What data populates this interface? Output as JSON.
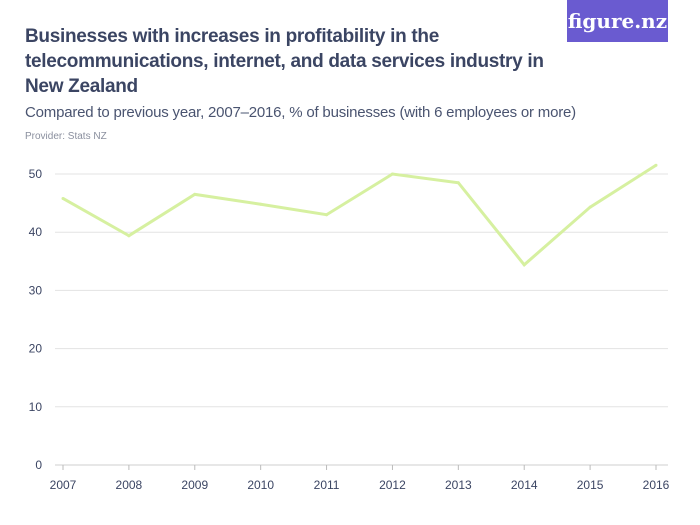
{
  "header": {
    "title": "Businesses with increases in profitability in the telecommunications, internet, and data services industry in New Zealand",
    "subtitle": "Compared to previous year, 2007–2016, % of businesses (with 6 employees or more)",
    "provider": "Provider: Stats NZ",
    "logo": "figure.nz"
  },
  "colors": {
    "line": "#d6f0a0",
    "grid": "#e3e3e3",
    "text": "#3b4563",
    "logo_bg": "#6a5bd0"
  },
  "chart_data": {
    "type": "line",
    "title": "Businesses with increases in profitability in the telecommunications, internet, and data services industry in New Zealand",
    "subtitle": "Compared to previous year, 2007–2016, % of businesses (with 6 employees or more)",
    "x": [
      "2007",
      "2008",
      "2009",
      "2010",
      "2011",
      "2012",
      "2013",
      "2014",
      "2015",
      "2016"
    ],
    "series": [
      {
        "values": [
          45.8,
          39.4,
          46.5,
          44.8,
          43.0,
          50.0,
          48.5,
          34.4,
          44.3,
          51.5
        ]
      }
    ],
    "yticks": [
      0,
      10,
      20,
      30,
      40,
      50
    ],
    "ylim": [
      0,
      50
    ],
    "grid": true,
    "xlabel": "",
    "ylabel": ""
  }
}
